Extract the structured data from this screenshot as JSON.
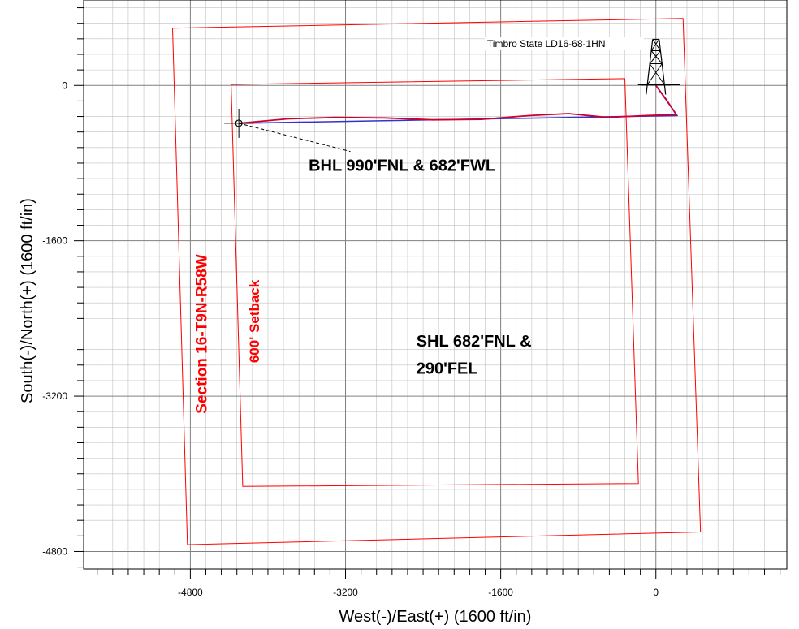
{
  "chart_data": {
    "type": "line",
    "xlabel": "West(-)/East(+) (1600 ft/in)",
    "ylabel": "South(-)/North(+) (1600 ft/in)",
    "xlim": [
      -5900,
      1350
    ],
    "ylim": [
      -4980,
      880
    ],
    "x_ticks": [
      -4800,
      -3200,
      -1600,
      0
    ],
    "y_ticks": [
      0,
      -1600,
      -3200,
      -4800
    ],
    "x_tick_labels": [
      "-4800",
      "-3200",
      "-1600",
      "0"
    ],
    "y_tick_labels": [
      "0",
      "-1600",
      "-3200",
      "-4800"
    ],
    "grid": true,
    "grid_step_minor": 160,
    "grid_step_major": 1600,
    "colors": {
      "minor_grid": "#c0c0c0",
      "major_grid": "#808080",
      "boundary": "#ff0000",
      "plan_line": "#3333cc",
      "actual_line": "#cc0033",
      "text": "#000000"
    },
    "series": [
      {
        "id": "section",
        "points": [
          [
            -4983,
            590
          ],
          [
            280,
            690
          ],
          [
            460,
            -4600
          ],
          [
            -4830,
            -4730
          ],
          [
            -4983,
            590
          ]
        ]
      },
      {
        "id": "setback",
        "points": [
          [
            -4380,
            10
          ],
          [
            -320,
            70
          ],
          [
            -180,
            -4100
          ],
          [
            -4260,
            -4130
          ],
          [
            -4380,
            10
          ]
        ]
      },
      {
        "id": "plan",
        "points": [
          [
            0,
            0
          ],
          [
            220,
            -310
          ],
          [
            -4300,
            -390
          ]
        ]
      },
      {
        "id": "actual",
        "points": [
          [
            0,
            0
          ],
          [
            110,
            -150
          ],
          [
            210,
            -300
          ],
          [
            -100,
            -310
          ],
          [
            -500,
            -330
          ],
          [
            -900,
            -290
          ],
          [
            -1300,
            -310
          ],
          [
            -1800,
            -350
          ],
          [
            -2300,
            -355
          ],
          [
            -2800,
            -335
          ],
          [
            -3300,
            -330
          ],
          [
            -3800,
            -345
          ],
          [
            -4300,
            -390
          ]
        ]
      },
      {
        "id": "bhl_leader",
        "points": [
          [
            -4300,
            -390
          ],
          [
            -3150,
            -680
          ]
        ]
      }
    ],
    "annotations": [
      {
        "id": "bhl",
        "text": "BHL 990'FNL & 682'FWL",
        "x": -3580,
        "y": -880
      },
      {
        "id": "shl_line1",
        "text": "SHL 682'FNL &",
        "x": -2470,
        "y": -2690
      },
      {
        "id": "shl_line2",
        "text": "290'FEL",
        "x": -2470,
        "y": -2970
      },
      {
        "id": "section_label",
        "text": "Section 16-T9N-R58W",
        "x": -4630,
        "y": -2560
      },
      {
        "id": "setback_label",
        "text": "600' Setback",
        "x": -4090,
        "y": -2430
      },
      {
        "id": "well_name",
        "text": "Timbro State LD16-68-1HN",
        "x": -1740,
        "y": 395
      }
    ],
    "markers": [
      {
        "id": "rig",
        "symbol": "derrick",
        "x": 0,
        "y": 90
      },
      {
        "id": "bhl_target",
        "symbol": "crosshair-circle",
        "x": -4300,
        "y": -390
      }
    ]
  }
}
